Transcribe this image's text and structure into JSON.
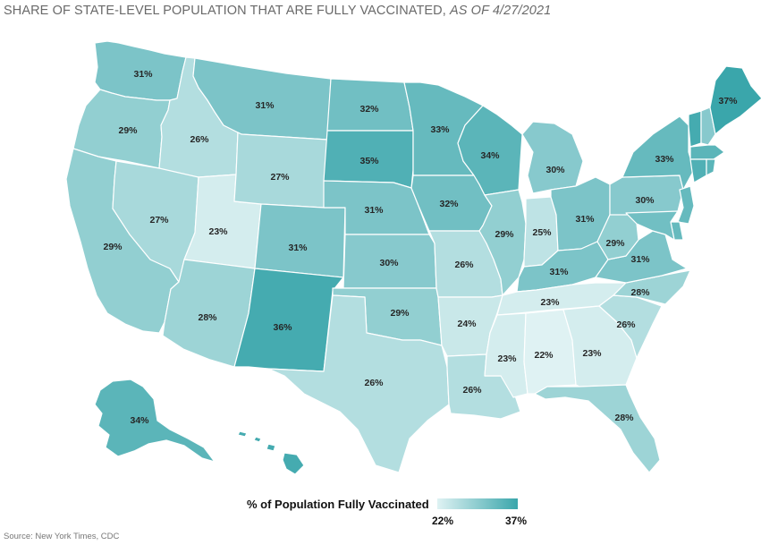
{
  "title": {
    "main": "SHARE OF STATE-LEVEL POPULATION THAT ARE FULLY VACCINATED, ",
    "as_of": "AS OF 4/27/2021"
  },
  "legend": {
    "title": "% of Population Fully Vaccinated",
    "min_label": "22%",
    "max_label": "37%",
    "min_value": 22,
    "max_value": 37,
    "color_low": "#dff2f3",
    "color_high": "#3aa6ab"
  },
  "source": "Source: New York Times, CDC",
  "chart_data": {
    "type": "choropleth",
    "title": "SHARE OF STATE-LEVEL POPULATION THAT ARE FULLY VACCINATED, AS OF 4/27/2021",
    "unit": "%",
    "states": [
      {
        "state": "WA",
        "value": 31,
        "label": "31%"
      },
      {
        "state": "OR",
        "value": 29,
        "label": "29%"
      },
      {
        "state": "CA",
        "value": 29,
        "label": "29%"
      },
      {
        "state": "ID",
        "value": 26,
        "label": "26%"
      },
      {
        "state": "NV",
        "value": 27,
        "label": "27%"
      },
      {
        "state": "UT",
        "value": 23,
        "label": "23%"
      },
      {
        "state": "AZ",
        "value": 28,
        "label": "28%"
      },
      {
        "state": "MT",
        "value": 31,
        "label": "31%"
      },
      {
        "state": "WY",
        "value": 27,
        "label": "27%"
      },
      {
        "state": "CO",
        "value": 31,
        "label": "31%"
      },
      {
        "state": "NM",
        "value": 36,
        "label": "36%"
      },
      {
        "state": "ND",
        "value": 32,
        "label": "32%"
      },
      {
        "state": "SD",
        "value": 35,
        "label": "35%"
      },
      {
        "state": "NE",
        "value": 31,
        "label": "31%"
      },
      {
        "state": "KS",
        "value": 30,
        "label": "30%"
      },
      {
        "state": "OK",
        "value": 29,
        "label": "29%"
      },
      {
        "state": "TX",
        "value": 26,
        "label": "26%"
      },
      {
        "state": "MN",
        "value": 33,
        "label": "33%"
      },
      {
        "state": "IA",
        "value": 32,
        "label": "32%"
      },
      {
        "state": "MO",
        "value": 26,
        "label": "26%"
      },
      {
        "state": "AR",
        "value": 24,
        "label": "24%"
      },
      {
        "state": "LA",
        "value": 26,
        "label": "26%"
      },
      {
        "state": "WI",
        "value": 34,
        "label": "34%"
      },
      {
        "state": "IL",
        "value": 29,
        "label": "29%"
      },
      {
        "state": "MI",
        "value": 30,
        "label": "30%"
      },
      {
        "state": "IN",
        "value": 25,
        "label": "25%"
      },
      {
        "state": "OH",
        "value": 31,
        "label": "31%"
      },
      {
        "state": "KY",
        "value": 31,
        "label": "31%"
      },
      {
        "state": "TN",
        "value": 23,
        "label": "23%"
      },
      {
        "state": "MS",
        "value": 23,
        "label": "23%"
      },
      {
        "state": "AL",
        "value": 22,
        "label": "22%"
      },
      {
        "state": "GA",
        "value": 23,
        "label": "23%"
      },
      {
        "state": "FL",
        "value": 28,
        "label": "28%"
      },
      {
        "state": "SC",
        "value": 26,
        "label": "26%"
      },
      {
        "state": "NC",
        "value": 28,
        "label": "28%"
      },
      {
        "state": "VA",
        "value": 31,
        "label": "31%"
      },
      {
        "state": "WV",
        "value": 29,
        "label": "29%"
      },
      {
        "state": "PA",
        "value": 30,
        "label": "30%"
      },
      {
        "state": "NY",
        "value": 33,
        "label": "33%"
      },
      {
        "state": "ME",
        "value": 37,
        "label": "37%"
      },
      {
        "state": "AK",
        "value": 34,
        "label": "34%"
      },
      {
        "state": "HI",
        "value": 36
      },
      {
        "state": "VT",
        "value": 36
      },
      {
        "state": "NH",
        "value": 30
      },
      {
        "state": "MA",
        "value": 34
      },
      {
        "state": "CT",
        "value": 35
      },
      {
        "state": "RI",
        "value": 34
      },
      {
        "state": "NJ",
        "value": 33
      },
      {
        "state": "DE",
        "value": 33
      },
      {
        "state": "MD",
        "value": 32
      }
    ]
  }
}
